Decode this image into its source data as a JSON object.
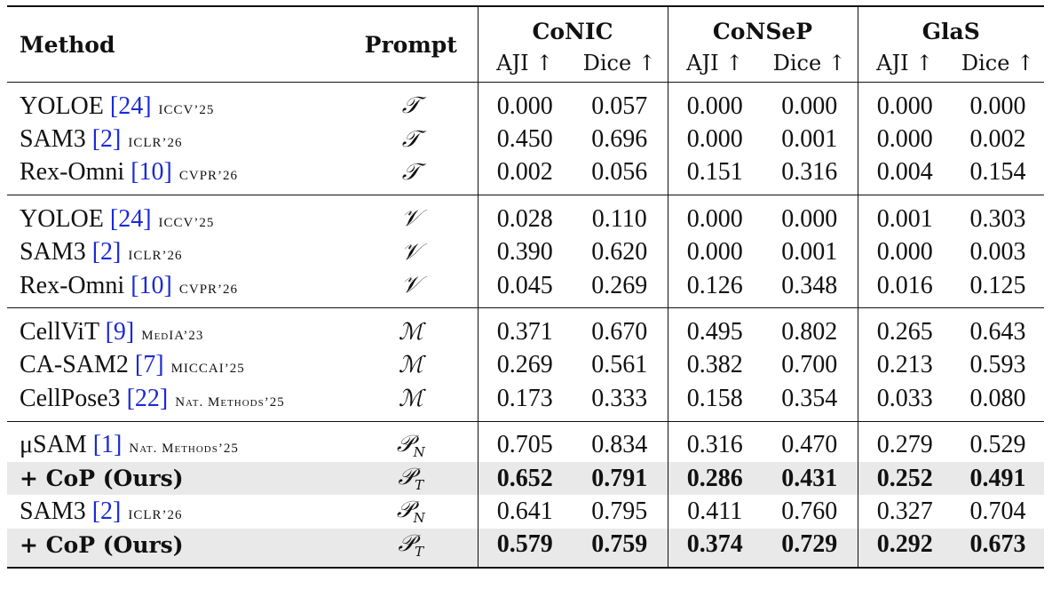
{
  "header": {
    "method": "Method",
    "prompt": "Prompt",
    "datasets": [
      "CoNIC",
      "CoNSeP",
      "GlaS"
    ],
    "metrics": [
      "AJI ↑",
      "Dice ↑",
      "AJI ↑",
      "Dice ↑",
      "AJI ↑",
      "Dice ↑"
    ]
  },
  "groups": [
    [
      {
        "name": "YOLOE",
        "ref": "[24]",
        "venue": "ICCV’25",
        "prompt": "T",
        "prompt_sub": "",
        "values": [
          "0.000",
          "0.057",
          "0.000",
          "0.000",
          "0.000",
          "0.000"
        ]
      },
      {
        "name": "SAM3",
        "ref": "[2]",
        "venue": "ICLR’26",
        "prompt": "T",
        "prompt_sub": "",
        "values": [
          "0.450",
          "0.696",
          "0.000",
          "0.001",
          "0.000",
          "0.002"
        ]
      },
      {
        "name": "Rex-Omni",
        "ref": "[10]",
        "venue": "CVPR’26",
        "prompt": "T",
        "prompt_sub": "",
        "values": [
          "0.002",
          "0.056",
          "0.151",
          "0.316",
          "0.004",
          "0.154"
        ]
      }
    ],
    [
      {
        "name": "YOLOE",
        "ref": "[24]",
        "venue": "ICCV’25",
        "prompt": "V",
        "prompt_sub": "",
        "values": [
          "0.028",
          "0.110",
          "0.000",
          "0.000",
          "0.001",
          "0.303"
        ]
      },
      {
        "name": "SAM3",
        "ref": "[2]",
        "venue": "ICLR’26",
        "prompt": "V",
        "prompt_sub": "",
        "values": [
          "0.390",
          "0.620",
          "0.000",
          "0.001",
          "0.000",
          "0.003"
        ]
      },
      {
        "name": "Rex-Omni",
        "ref": "[10]",
        "venue": "CVPR’26",
        "prompt": "V",
        "prompt_sub": "",
        "values": [
          "0.045",
          "0.269",
          "0.126",
          "0.348",
          "0.016",
          "0.125"
        ]
      }
    ],
    [
      {
        "name": "CellViT",
        "ref": "[9]",
        "venue": "MedIA’23",
        "prompt": "M",
        "prompt_sub": "",
        "values": [
          "0.371",
          "0.670",
          "0.495",
          "0.802",
          "0.265",
          "0.643"
        ]
      },
      {
        "name": "CA-SAM2",
        "ref": "[7]",
        "venue": "MICCAI’25",
        "prompt": "M",
        "prompt_sub": "",
        "values": [
          "0.269",
          "0.561",
          "0.382",
          "0.700",
          "0.213",
          "0.593"
        ]
      },
      {
        "name": "CellPose3",
        "ref": "[22]",
        "venue": "Nat. Methods’25",
        "prompt": "M",
        "prompt_sub": "",
        "values": [
          "0.173",
          "0.333",
          "0.158",
          "0.354",
          "0.033",
          "0.080"
        ]
      }
    ],
    [
      {
        "name": "μSAM",
        "ref": "[1]",
        "venue": "Nat. Methods’25",
        "prompt": "P",
        "prompt_sub": "N",
        "values": [
          "0.705",
          "0.834",
          "0.316",
          "0.470",
          "0.279",
          "0.529"
        ]
      },
      {
        "name": "+ CoP (Ours)",
        "ref": "",
        "venue": "",
        "prompt": "P",
        "prompt_sub": "T",
        "ours": true,
        "values": [
          "0.652",
          "0.791",
          "0.286",
          "0.431",
          "0.252",
          "0.491"
        ]
      },
      {
        "name": "SAM3",
        "ref": "[2]",
        "venue": "ICLR’26",
        "prompt": "P",
        "prompt_sub": "N",
        "values": [
          "0.641",
          "0.795",
          "0.411",
          "0.760",
          "0.327",
          "0.704"
        ]
      },
      {
        "name": "+ CoP (Ours)",
        "ref": "",
        "venue": "",
        "prompt": "P",
        "prompt_sub": "T",
        "ours": true,
        "values": [
          "0.579",
          "0.759",
          "0.374",
          "0.729",
          "0.292",
          "0.673"
        ]
      }
    ]
  ]
}
